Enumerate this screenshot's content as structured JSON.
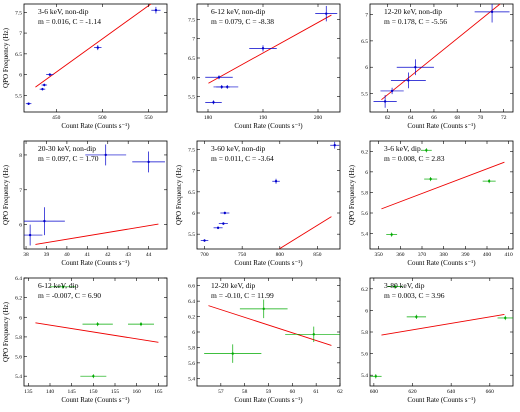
{
  "chart_data": [
    {
      "type": "scatter",
      "annotation_line1": "3-6 keV, non-dip",
      "annotation_line2": "m = 0.016, C = -1.14",
      "xlabel": "Count Rate",
      "xunit": "(Counts s⁻¹)",
      "ylabel": "QPO Frequency (Hz)",
      "xlim": [
        415,
        570
      ],
      "ylim": [
        5.1,
        7.7
      ],
      "xticks": [
        450,
        500,
        550
      ],
      "xticklabels": [
        "450",
        "500",
        "550"
      ],
      "yticks": [
        5.5,
        6,
        6.5,
        7,
        7.5
      ],
      "yticklabels": [
        "5.5",
        "6",
        "6.5",
        "7",
        "7.5"
      ],
      "marker_color": "#0000cc",
      "fit_color": "#ee0000",
      "fit": {
        "m": 0.016,
        "c": -1.14
      },
      "points": [
        {
          "x": 420,
          "y": 5.3,
          "xerr": 3,
          "yerr": 0.03
        },
        {
          "x": 435,
          "y": 5.65,
          "xerr": 3,
          "yerr": 0.03
        },
        {
          "x": 437,
          "y": 5.75,
          "xerr": 3,
          "yerr": 0.03
        },
        {
          "x": 443,
          "y": 6.0,
          "xerr": 4,
          "yerr": 0.03
        },
        {
          "x": 495,
          "y": 6.65,
          "xerr": 4,
          "yerr": 0.06
        },
        {
          "x": 558,
          "y": 7.55,
          "xerr": 5,
          "yerr": 0.08
        }
      ]
    },
    {
      "type": "scatter",
      "annotation_line1": "6-12 keV, non-dip",
      "annotation_line2": "m = 0.079, C = -8.38",
      "xlabel": "Count Rate",
      "xunit": "(Counts s⁻¹)",
      "ylabel": "",
      "xlim": [
        178,
        204
      ],
      "ylim": [
        5.1,
        7.9
      ],
      "xticks": [
        180,
        190,
        200
      ],
      "xticklabels": [
        "180",
        "190",
        "200"
      ],
      "yticks": [
        5.5,
        6,
        6.5,
        7,
        7.5
      ],
      "yticklabels": [
        "5.5",
        "6",
        "6.5",
        "7",
        "7.5"
      ],
      "marker_color": "#0000cc",
      "fit_color": "#ee0000",
      "fit": {
        "m": 0.079,
        "c": -8.38
      },
      "points": [
        {
          "x": 181,
          "y": 5.35,
          "xerr": 1.5,
          "yerr": 0.05
        },
        {
          "x": 182,
          "y": 6.0,
          "xerr": 2.5,
          "yerr": 0.05
        },
        {
          "x": 182.5,
          "y": 5.75,
          "xerr": 1.5,
          "yerr": 0.05
        },
        {
          "x": 183.5,
          "y": 5.75,
          "xerr": 2,
          "yerr": 0.05
        },
        {
          "x": 190,
          "y": 6.75,
          "xerr": 2.5,
          "yerr": 0.08
        },
        {
          "x": 201.5,
          "y": 7.65,
          "xerr": 2,
          "yerr": 0.2
        }
      ]
    },
    {
      "type": "scatter",
      "annotation_line1": "12-20 keV, non-dip",
      "annotation_line2": "m = 0.178, C = -5.56",
      "xlabel": "Count Rate",
      "xunit": "(Counts s⁻¹)",
      "ylabel": "",
      "xlim": [
        60.5,
        72.8
      ],
      "ylim": [
        5.15,
        7.2
      ],
      "xticks": [
        62,
        64,
        66,
        68,
        70,
        72
      ],
      "xticklabels": [
        "62",
        "64",
        "66",
        "68",
        "70",
        "72"
      ],
      "yticks": [
        5.5,
        6,
        6.5,
        7
      ],
      "yticklabels": [
        "5.5",
        "6",
        "6.5",
        "7"
      ],
      "marker_color": "#0000cc",
      "fit_color": "#ee0000",
      "fit": {
        "m": 0.178,
        "c": -5.56
      },
      "points": [
        {
          "x": 61.8,
          "y": 5.35,
          "xerr": 1.0,
          "yerr": 0.12
        },
        {
          "x": 62.4,
          "y": 5.55,
          "xerr": 1.0,
          "yerr": 0.06
        },
        {
          "x": 63.8,
          "y": 5.75,
          "xerr": 1.5,
          "yerr": 0.15
        },
        {
          "x": 64.4,
          "y": 6.0,
          "xerr": 1.6,
          "yerr": 0.15
        },
        {
          "x": 71.0,
          "y": 7.05,
          "xerr": 1.5,
          "yerr": 0.2
        }
      ]
    },
    {
      "type": "scatter",
      "annotation_line1": "20-30 keV, non-dip",
      "annotation_line2": "m = 0.097, C = 1.70",
      "xlabel": "Count Rate",
      "xunit": "(Counts s⁻¹)",
      "ylabel": "QPO Frequency (Hz)",
      "xlim": [
        37.9,
        44.9
      ],
      "ylim": [
        5.3,
        8.4
      ],
      "xticks": [
        38,
        39,
        40,
        41,
        42,
        43,
        44
      ],
      "xticklabels": [
        "38",
        "39",
        "40",
        "41",
        "42",
        "43",
        "44"
      ],
      "yticks": [
        6,
        7,
        8
      ],
      "yticklabels": [
        "6",
        "7",
        "8"
      ],
      "marker_color": "#0000cc",
      "fit_color": "#ee0000",
      "fit": {
        "m": 0.097,
        "c": 1.7
      },
      "points": [
        {
          "x": 38.2,
          "y": 5.7,
          "xerr": 0.6,
          "yerr": 0.3
        },
        {
          "x": 38.9,
          "y": 6.1,
          "xerr": 1.0,
          "yerr": 0.4
        },
        {
          "x": 41.9,
          "y": 8.0,
          "xerr": 1.0,
          "yerr": 0.3
        },
        {
          "x": 44.0,
          "y": 7.8,
          "xerr": 0.8,
          "yerr": 0.3
        }
      ]
    },
    {
      "type": "scatter",
      "annotation_line1": "3-60 keV, non-dip",
      "annotation_line2": "m = 0.011, C = -3.64",
      "xlabel": "Count Rate",
      "xunit": "(Counts s⁻¹)",
      "ylabel": "QPO Frequency (Hz)",
      "xlim": [
        690,
        880
      ],
      "ylim": [
        5.15,
        7.7
      ],
      "xticks": [
        700,
        750,
        800,
        850
      ],
      "xticklabels": [
        "700",
        "750",
        "800",
        "850"
      ],
      "yticks": [
        5.5,
        6,
        6.5,
        7,
        7.5
      ],
      "yticklabels": [
        "5.5",
        "6",
        "6.5",
        "7",
        "7.5"
      ],
      "marker_color": "#0000cc",
      "fit_color": "#ee0000",
      "fit": {
        "m": 0.011,
        "c": -3.64
      },
      "points": [
        {
          "x": 700,
          "y": 5.35,
          "xerr": 5,
          "yerr": 0.03
        },
        {
          "x": 718,
          "y": 5.65,
          "xerr": 6,
          "yerr": 0.03
        },
        {
          "x": 725,
          "y": 5.75,
          "xerr": 6,
          "yerr": 0.03
        },
        {
          "x": 727,
          "y": 6.0,
          "xerr": 6,
          "yerr": 0.03
        },
        {
          "x": 795,
          "y": 6.75,
          "xerr": 5,
          "yerr": 0.06
        },
        {
          "x": 873,
          "y": 7.6,
          "xerr": 6,
          "yerr": 0.08
        }
      ]
    },
    {
      "type": "scatter",
      "annotation_line1": "3-6 keV, dip",
      "annotation_line2": "m = 0.008, C = 2.83",
      "xlabel": "Count Rate",
      "xunit": "(Counts s⁻¹)",
      "ylabel": "QPO Frequency (Hz)",
      "xlim": [
        346,
        412
      ],
      "ylim": [
        5.25,
        6.3
      ],
      "xticks": [
        350,
        360,
        370,
        380,
        390,
        400,
        410
      ],
      "xticklabels": [
        "350",
        "360",
        "370",
        "380",
        "390",
        "400",
        "410"
      ],
      "yticks": [
        5.4,
        5.6,
        5.8,
        6,
        6.2
      ],
      "yticklabels": [
        "5.4",
        "5.6",
        "5.8",
        "6",
        "6.2"
      ],
      "marker_color": "#00aa00",
      "fit_color": "#ee0000",
      "fit": {
        "m": 0.008,
        "c": 2.83
      },
      "points": [
        {
          "x": 356,
          "y": 5.39,
          "xerr": 2.5,
          "yerr": 0.02
        },
        {
          "x": 372,
          "y": 6.21,
          "xerr": 2.5,
          "yerr": 0.02
        },
        {
          "x": 374,
          "y": 5.93,
          "xerr": 3,
          "yerr": 0.02
        },
        {
          "x": 401,
          "y": 5.91,
          "xerr": 3,
          "yerr": 0.02
        }
      ]
    },
    {
      "type": "scatter",
      "annotation_line1": "6-12 keV, dip",
      "annotation_line2": "m = -0.007, C = 6.90",
      "xlabel": "Count Rate",
      "xunit": "(Counts s⁻¹)",
      "ylabel": "QPO Frequency (Hz)",
      "xlim": [
        134,
        167
      ],
      "ylim": [
        5.3,
        6.4
      ],
      "xticks": [
        135,
        140,
        145,
        150,
        155,
        160,
        165
      ],
      "xticklabels": [
        "135",
        "140",
        "145",
        "150",
        "155",
        "160",
        "165"
      ],
      "yticks": [
        5.4,
        5.6,
        5.8,
        6,
        6.2,
        6.4
      ],
      "yticklabels": [
        "5.4",
        "5.6",
        "5.8",
        "6",
        "6.2",
        "6.4"
      ],
      "marker_color": "#00aa00",
      "fit_color": "#ee0000",
      "fit": {
        "m": -0.007,
        "c": 6.9
      },
      "points": [
        {
          "x": 143,
          "y": 6.31,
          "xerr": 3,
          "yerr": 0.02
        },
        {
          "x": 150,
          "y": 5.4,
          "xerr": 3,
          "yerr": 0.02
        },
        {
          "x": 151,
          "y": 5.93,
          "xerr": 3.5,
          "yerr": 0.02
        },
        {
          "x": 161,
          "y": 5.93,
          "xerr": 3,
          "yerr": 0.02
        }
      ]
    },
    {
      "type": "scatter",
      "annotation_line1": "12-20 keV, dip",
      "annotation_line2": "m = -0.10, C = 11.99",
      "xlabel": "Count Rate",
      "xunit": "(Counts s⁻¹)",
      "ylabel": "",
      "xlim": [
        56,
        62
      ],
      "ylim": [
        5.3,
        6.7
      ],
      "xticks": [
        57,
        58,
        59,
        60,
        61,
        62
      ],
      "xticklabels": [
        "57",
        "58",
        "59",
        "60",
        "61",
        "62"
      ],
      "yticks": [
        5.4,
        5.6,
        5.8,
        6,
        6.2,
        6.4,
        6.6
      ],
      "yticklabels": [
        "5.4",
        "5.6",
        "5.8",
        "6",
        "6.2",
        "6.4",
        "6.6"
      ],
      "marker_color": "#00aa00",
      "fit_color": "#ee0000",
      "fit": {
        "m": -0.1,
        "c": 11.99
      },
      "points": [
        {
          "x": 57.5,
          "y": 5.72,
          "xerr": 1.2,
          "yerr": 0.12
        },
        {
          "x": 58.8,
          "y": 6.3,
          "xerr": 1.0,
          "yerr": 0.12
        },
        {
          "x": 60.9,
          "y": 5.97,
          "xerr": 1.2,
          "yerr": 0.1
        }
      ]
    },
    {
      "type": "scatter",
      "annotation_line1": "3-80 keV, dip",
      "annotation_line2": "m = 0.003, C = 3.96",
      "xlabel": "Count Rate",
      "xunit": "(Counts s⁻¹)",
      "ylabel": "",
      "xlim": [
        598,
        672
      ],
      "ylim": [
        5.3,
        6.3
      ],
      "xticks": [
        600,
        620,
        640,
        660
      ],
      "xticklabels": [
        "600",
        "620",
        "640",
        "660"
      ],
      "yticks": [
        5.4,
        5.6,
        5.8,
        6,
        6.2
      ],
      "yticklabels": [
        "5.4",
        "5.6",
        "5.8",
        "6",
        "6.2"
      ],
      "marker_color": "#00aa00",
      "fit_color": "#ee0000",
      "fit": {
        "m": 0.003,
        "c": 3.96
      },
      "points": [
        {
          "x": 601,
          "y": 5.39,
          "xerr": 3,
          "yerr": 0.02
        },
        {
          "x": 611,
          "y": 6.22,
          "xerr": 4,
          "yerr": 0.02
        },
        {
          "x": 622,
          "y": 5.94,
          "xerr": 5,
          "yerr": 0.02
        },
        {
          "x": 668,
          "y": 5.93,
          "xerr": 4,
          "yerr": 0.02
        }
      ]
    }
  ]
}
